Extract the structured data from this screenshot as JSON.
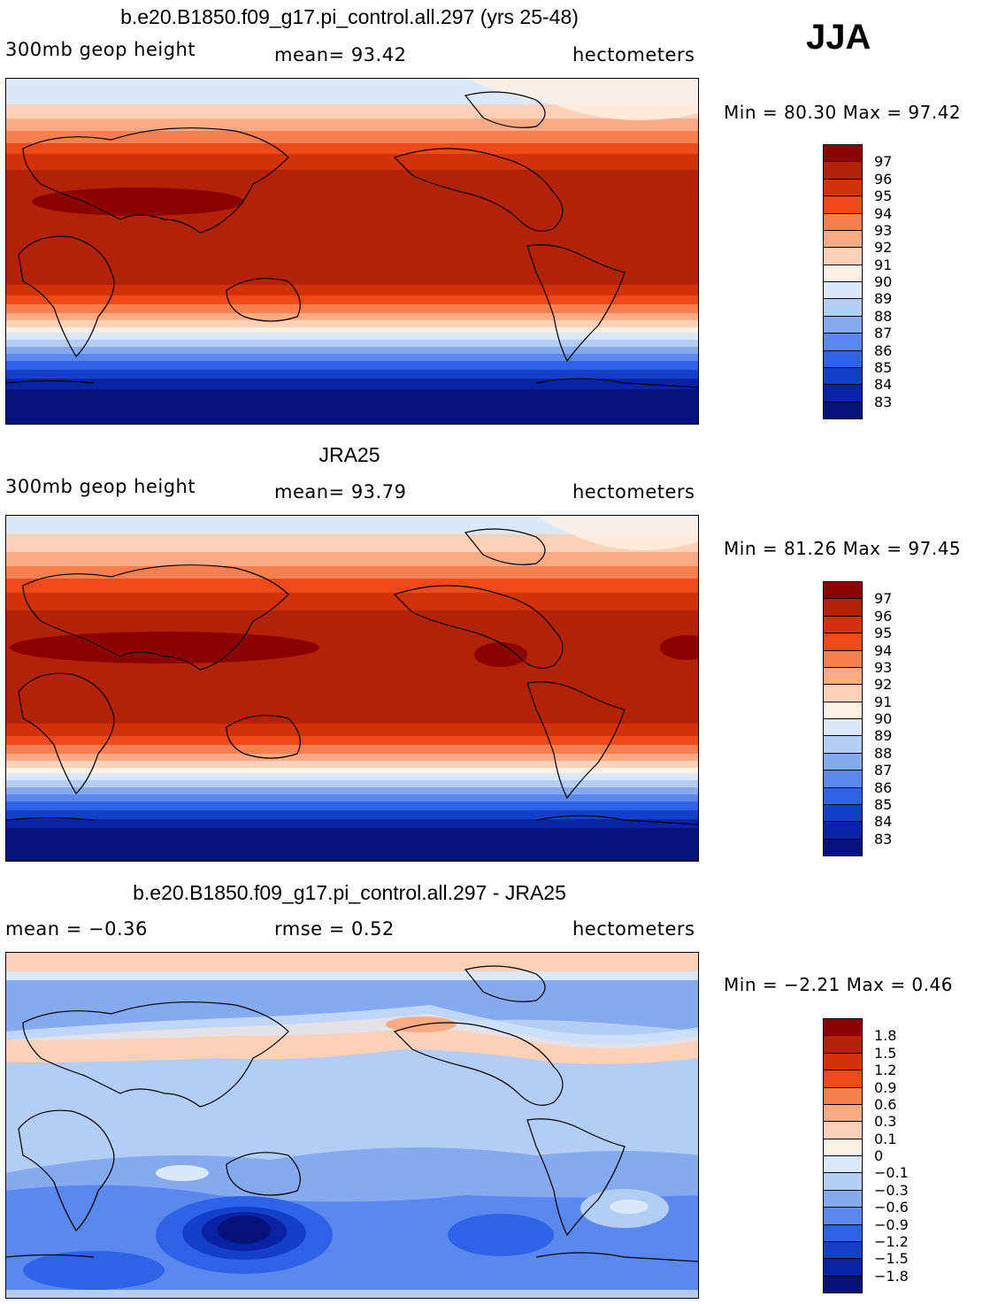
{
  "season": "JJA",
  "panels": [
    {
      "title": "b.e20.B1850.f09_g17.pi_control.all.297 (yrs 25-48)",
      "left_label": "300mb geop height",
      "mid_label": "mean=  93.42",
      "units": "hectometers",
      "minmax": "Min =  80.30 Max =  97.42",
      "colorbar": {
        "labels": [
          "97",
          "96",
          "95",
          "94",
          "93",
          "92",
          "91",
          "90",
          "89",
          "88",
          "87",
          "86",
          "85",
          "84",
          "83"
        ],
        "colors": [
          "#8b0000",
          "#b22206",
          "#d33208",
          "#f04a1a",
          "#f77f50",
          "#fbaa86",
          "#fdd0b8",
          "#fff0e4",
          "#d9e8fb",
          "#b3cdf5",
          "#85aaf0",
          "#5a88ee",
          "#2f62e6",
          "#1440c8",
          "#0a23a5",
          "#05127a"
        ]
      }
    },
    {
      "title": "JRA25",
      "left_label": "300mb geop height",
      "mid_label": "mean=  93.79",
      "units": "hectometers",
      "minmax": "Min =  81.26 Max =  97.45",
      "colorbar": {
        "labels": [
          "97",
          "96",
          "95",
          "94",
          "93",
          "92",
          "91",
          "90",
          "89",
          "88",
          "87",
          "86",
          "85",
          "84",
          "83"
        ],
        "colors": [
          "#8b0000",
          "#b22206",
          "#d33208",
          "#f04a1a",
          "#f77f50",
          "#fbaa86",
          "#fdd0b8",
          "#fff0e4",
          "#d9e8fb",
          "#b3cdf5",
          "#85aaf0",
          "#5a88ee",
          "#2f62e6",
          "#1440c8",
          "#0a23a5",
          "#05127a"
        ]
      }
    },
    {
      "title": "b.e20.B1850.f09_g17.pi_control.all.297 - JRA25",
      "left_label": "mean =  −0.36",
      "mid_label": "rmse =    0.52",
      "units": "hectometers",
      "minmax": "Min =  −2.21 Max =    0.46",
      "colorbar": {
        "labels": [
          "1.8",
          "1.5",
          "1.2",
          "0.9",
          "0.6",
          "0.3",
          "0.1",
          "0",
          "−0.1",
          "−0.3",
          "−0.6",
          "−0.9",
          "−1.2",
          "−1.5",
          "−1.8"
        ],
        "colors": [
          "#8b0000",
          "#b22206",
          "#d33208",
          "#f04a1a",
          "#f77f50",
          "#fbaa86",
          "#fdd0b8",
          "#fff0e4",
          "#d9e8fb",
          "#b3cdf5",
          "#85aaf0",
          "#5a88ee",
          "#2f62e6",
          "#1440c8",
          "#0a23a5",
          "#05127a"
        ]
      }
    }
  ]
}
